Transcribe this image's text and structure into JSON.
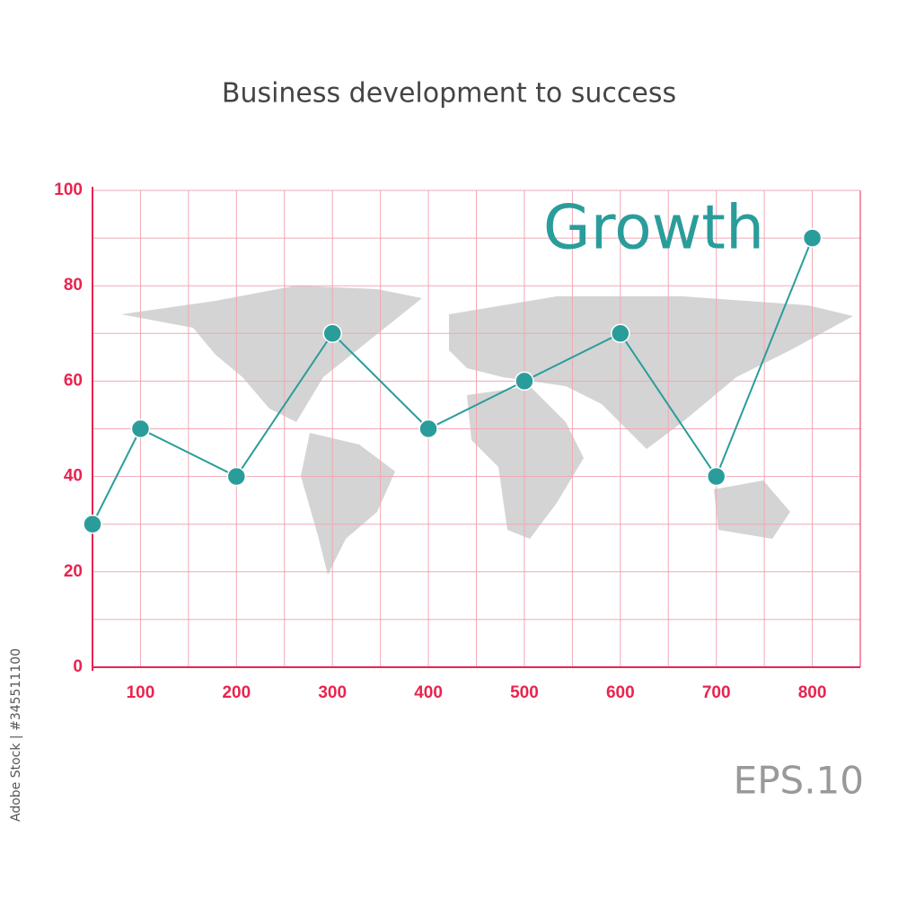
{
  "chart_data": {
    "type": "line",
    "title": "Business development to success",
    "x": [
      50,
      100,
      200,
      300,
      400,
      500,
      600,
      700,
      800
    ],
    "series": [
      {
        "name": "Growth",
        "color": "#2a9d9b",
        "values": [
          30,
          50,
          40,
          70,
          50,
          60,
          70,
          40,
          90
        ]
      }
    ],
    "xlim": [
      50,
      850
    ],
    "xticks": [
      100,
      200,
      300,
      400,
      500,
      600,
      700,
      800
    ],
    "ylim": [
      0,
      100
    ],
    "yticks": [
      0,
      20,
      40,
      60,
      80,
      100
    ],
    "grid": true,
    "grid_color": "#f2a7b5",
    "axis_color": "#e8244f",
    "annotations": [
      "EPS.10",
      "Adobe Stock | #345511100"
    ]
  }
}
